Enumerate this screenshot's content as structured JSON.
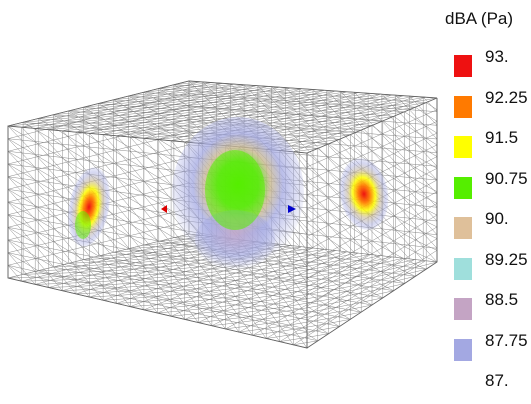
{
  "legend": {
    "title": "dBA (Pa)",
    "entries": [
      {
        "label": "93.",
        "color": "#ee1111"
      },
      {
        "label": "92.25",
        "color": "#ff7a00"
      },
      {
        "label": "91.5",
        "color": "#ffff00"
      },
      {
        "label": "90.75",
        "color": "#55ee00"
      },
      {
        "label": "90.",
        "color": "#dfc09a"
      },
      {
        "label": "89.25",
        "color": "#9fdfdc"
      },
      {
        "label": "88.5",
        "color": "#c4a4c4"
      },
      {
        "label": "87.75",
        "color": "#a3a8e2"
      },
      {
        "label": "87.",
        "color": "#a3a8e2"
      }
    ]
  },
  "markers": {
    "left_color": "#dd0000",
    "right_color": "#0000cc"
  }
}
